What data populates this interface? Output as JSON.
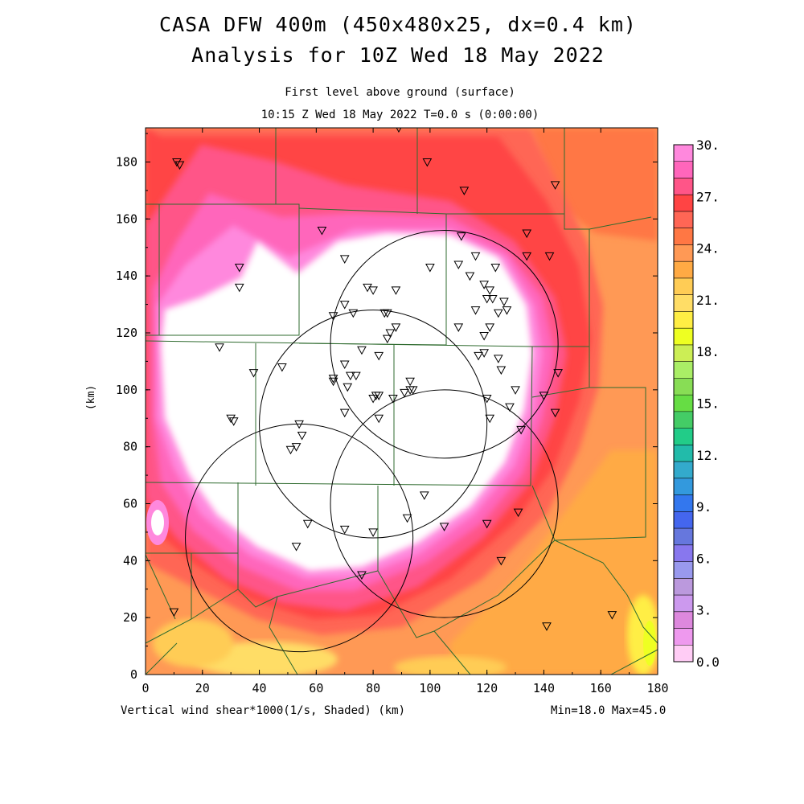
{
  "title_line1": "CASA DFW 400m (450x480x25, dx=0.4 km)",
  "title_line2": "Analysis for 10Z Wed 18 May 2022",
  "subtitle_level": "First level above ground (surface)",
  "subtitle_time": "10:15 Z Wed 18 May 2022    T=0.0 s (0:00:00)",
  "x_axis_label": "(km)",
  "y_axis_label": "(km)",
  "field_label": "Vertical wind shear*1000(1/s, Shaded)",
  "min_max": "Min=18.0 Max=45.0",
  "x_ticks": [
    "0",
    "20",
    "40",
    "60",
    "80",
    "100",
    "120",
    "140",
    "160",
    "180"
  ],
  "y_ticks": [
    "0",
    "20",
    "40",
    "60",
    "80",
    "100",
    "120",
    "140",
    "160",
    "180"
  ],
  "colorbar": {
    "labels": [
      "30.",
      "27.",
      "24.",
      "21.",
      "18.",
      "15.",
      "12.",
      "9.",
      "6.",
      "3.",
      "0.0"
    ],
    "colors_top_to_bottom": [
      "#ff88dd",
      "#ff66bb",
      "#ff5588",
      "#ff4444",
      "#ff6655",
      "#ff7744",
      "#ff9955",
      "#ffaa44",
      "#ffcc55",
      "#ffdd66",
      "#ffee44",
      "#eeff22",
      "#ccee55",
      "#aaee66",
      "#88dd55",
      "#66dd44",
      "#44cc66",
      "#22cc88",
      "#22bbaa",
      "#33aacc",
      "#3399dd",
      "#3377ee",
      "#4466ee",
      "#6677dd",
      "#8877ee",
      "#9999ee",
      "#bb99dd",
      "#cc99ee",
      "#dd88dd",
      "#ee99ee",
      "#ffccf5"
    ]
  },
  "chart_data": {
    "type": "heatmap",
    "xlim": [
      0,
      180
    ],
    "ylim": [
      0,
      192
    ],
    "radar_rings": [
      {
        "cx": 105,
        "cy": 116,
        "r": 40
      },
      {
        "cx": 80,
        "cy": 88,
        "r": 40
      },
      {
        "cx": 54,
        "cy": 48,
        "r": 40
      },
      {
        "cx": 105,
        "cy": 60,
        "r": 40
      }
    ],
    "stations": [
      [
        11,
        180
      ],
      [
        12,
        179
      ],
      [
        99,
        180
      ],
      [
        33,
        143
      ],
      [
        33,
        136
      ],
      [
        62,
        156
      ],
      [
        70,
        146
      ],
      [
        112,
        170
      ],
      [
        144,
        172
      ],
      [
        134,
        155
      ],
      [
        134,
        147
      ],
      [
        142,
        147
      ],
      [
        111,
        154
      ],
      [
        116,
        147
      ],
      [
        123,
        143
      ],
      [
        100,
        143
      ],
      [
        110,
        144
      ],
      [
        114,
        140
      ],
      [
        119,
        137
      ],
      [
        121,
        135
      ],
      [
        120,
        132
      ],
      [
        122,
        132
      ],
      [
        126,
        131
      ],
      [
        127,
        128
      ],
      [
        124,
        127
      ],
      [
        116,
        128
      ],
      [
        110,
        122
      ],
      [
        121,
        122
      ],
      [
        119,
        119
      ],
      [
        117,
        112
      ],
      [
        119,
        113
      ],
      [
        124,
        111
      ],
      [
        125,
        107
      ],
      [
        130,
        100
      ],
      [
        140,
        98
      ],
      [
        144,
        92
      ],
      [
        145,
        106
      ],
      [
        128,
        94
      ],
      [
        132,
        86
      ],
      [
        121,
        90
      ],
      [
        120,
        97
      ],
      [
        78,
        136
      ],
      [
        80,
        135
      ],
      [
        88,
        135
      ],
      [
        84,
        127
      ],
      [
        85,
        127
      ],
      [
        88,
        122
      ],
      [
        86,
        120
      ],
      [
        85,
        118
      ],
      [
        73,
        127
      ],
      [
        70,
        130
      ],
      [
        66,
        126
      ],
      [
        76,
        114
      ],
      [
        82,
        112
      ],
      [
        70,
        109
      ],
      [
        72,
        105
      ],
      [
        74,
        105
      ],
      [
        66,
        104
      ],
      [
        66,
        103
      ],
      [
        71,
        101
      ],
      [
        48,
        108
      ],
      [
        38,
        106
      ],
      [
        26,
        115
      ],
      [
        30,
        90
      ],
      [
        31,
        89
      ],
      [
        54,
        88
      ],
      [
        55,
        84
      ],
      [
        53,
        80
      ],
      [
        51,
        79
      ],
      [
        80,
        97
      ],
      [
        81,
        98
      ],
      [
        82,
        98
      ],
      [
        87,
        97
      ],
      [
        91,
        99
      ],
      [
        93,
        103
      ],
      [
        93,
        100
      ],
      [
        94,
        100
      ],
      [
        70,
        92
      ],
      [
        82,
        90
      ],
      [
        98,
        63
      ],
      [
        131,
        57
      ],
      [
        120,
        53
      ],
      [
        92,
        55
      ],
      [
        105,
        52
      ],
      [
        57,
        53
      ],
      [
        70,
        51
      ],
      [
        80,
        50
      ],
      [
        53,
        45
      ],
      [
        76,
        35
      ],
      [
        125,
        40
      ],
      [
        141,
        17
      ],
      [
        164,
        21
      ],
      [
        10,
        22
      ],
      [
        89,
        192
      ]
    ]
  }
}
